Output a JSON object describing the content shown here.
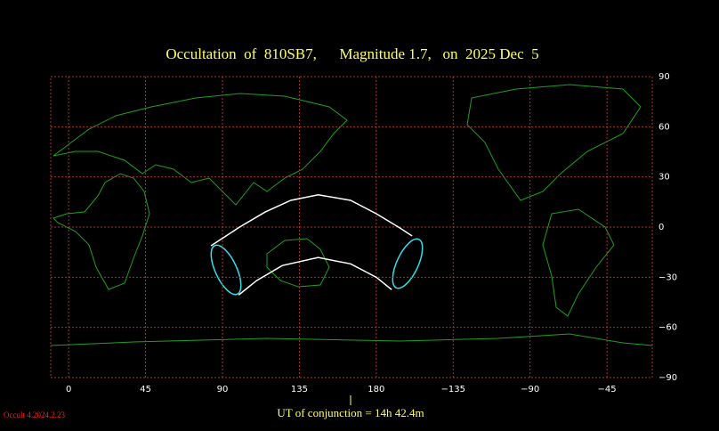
{
  "chart_data": {
    "type": "map",
    "title": "Occultation  of  810SB7,      Magnitude 1.7,   on  2025 Dec  5",
    "caption": "UT of conjunction = 14h 42.4m",
    "version": "Occult 4.2024.2.23",
    "xlim": [
      -10.5,
      341.5
    ],
    "ylim": [
      -90,
      90
    ],
    "xticks": [
      0,
      45,
      90,
      135,
      180,
      {
        "value": 225,
        "label": "−135"
      },
      {
        "value": 270,
        "label": "−90"
      },
      {
        "value": 315,
        "label": "−45"
      }
    ],
    "yticks": [
      90,
      60,
      30,
      0,
      {
        "value": -30,
        "label": "−30"
      },
      {
        "value": -60,
        "label": "−60"
      },
      {
        "value": -90,
        "label": "−90"
      }
    ],
    "grid": true,
    "series": [
      {
        "color": "#ffffff",
        "x": [
          83.3,
          100,
          115,
          130,
          146,
          165,
          180,
          193,
          201
        ],
        "values": [
          -11.2,
          0,
          9,
          16,
          19.3,
          16,
          8,
          0,
          -5.3
        ]
      },
      {
        "color": "#ffffff",
        "x": [
          99.5,
          110,
          125,
          146,
          165,
          180,
          189
        ],
        "values": [
          -40.6,
          -32,
          -23,
          -18.2,
          -22,
          -30,
          -37.4
        ]
      }
    ]
  }
}
